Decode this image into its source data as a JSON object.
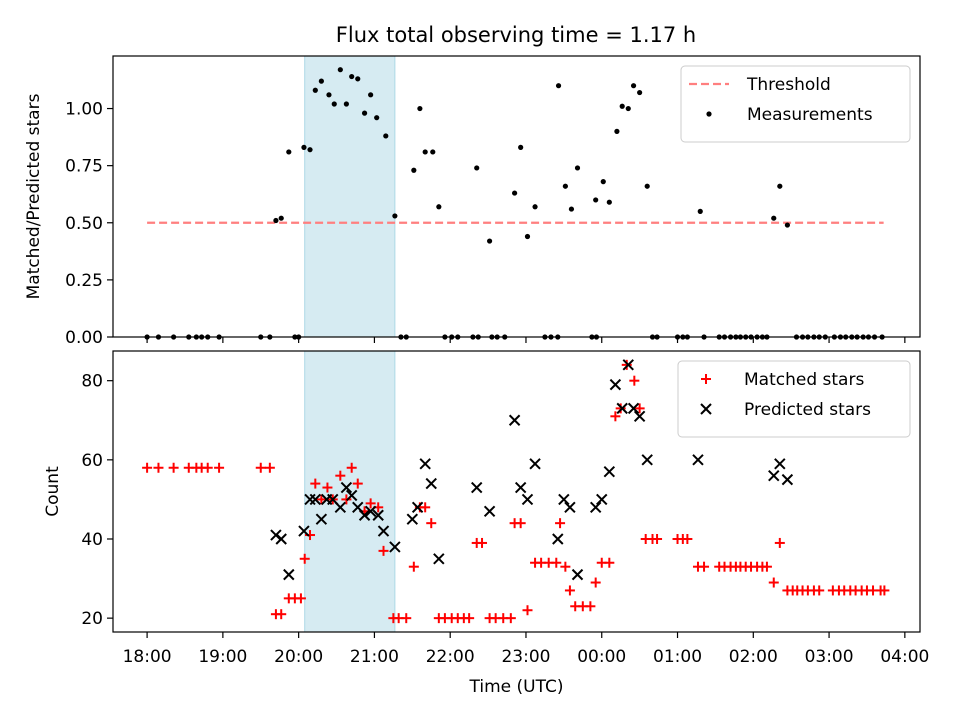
{
  "title": "Flux total observing time = 1.17 h",
  "colors": {
    "threshold": "#ff7f7f",
    "measurement": "#000000",
    "matched": "#ff0000",
    "predicted": "#000000",
    "shade": "#add8e6"
  },
  "chart_data": [
    {
      "type": "scatter",
      "title": "Flux total observing time = 1.17 h",
      "ylabel": "Matched/Predicted stars",
      "xlabel": "",
      "x_unit": "hours (UTC, continuing past midnight as 24+)",
      "xlim": [
        17.55,
        28.2
      ],
      "ylim": [
        0,
        1.23
      ],
      "yticks": [
        0.0,
        0.25,
        0.5,
        0.75,
        1.0
      ],
      "ytick_labels": [
        "0.00",
        "0.25",
        "0.50",
        "0.75",
        "1.00"
      ],
      "shaded_interval": [
        "20:05",
        "21:16"
      ],
      "shaded_x": [
        20.08,
        21.27
      ],
      "legend_position": "top-right",
      "threshold": {
        "name": "Threshold",
        "y": 0.5,
        "x_range": [
          18.0,
          27.72
        ]
      },
      "series": [
        {
          "name": "Measurements",
          "points": [
            [
              18.0,
              0
            ],
            [
              18.15,
              0
            ],
            [
              18.35,
              0
            ],
            [
              18.55,
              0
            ],
            [
              18.65,
              0
            ],
            [
              18.72,
              0
            ],
            [
              18.8,
              0
            ],
            [
              18.95,
              0
            ],
            [
              19.5,
              0
            ],
            [
              19.62,
              0
            ],
            [
              19.95,
              0
            ],
            [
              20.0,
              0
            ],
            [
              19.7,
              0.51
            ],
            [
              19.77,
              0.52
            ],
            [
              19.87,
              0.81
            ],
            [
              20.07,
              0.83
            ],
            [
              20.15,
              0.82
            ],
            [
              20.22,
              1.08
            ],
            [
              20.3,
              1.12
            ],
            [
              20.4,
              1.06
            ],
            [
              20.47,
              1.02
            ],
            [
              20.55,
              1.17
            ],
            [
              20.63,
              1.02
            ],
            [
              20.7,
              1.14
            ],
            [
              20.78,
              1.13
            ],
            [
              20.87,
              0.98
            ],
            [
              20.95,
              1.06
            ],
            [
              21.03,
              0.96
            ],
            [
              21.15,
              0.88
            ],
            [
              21.27,
              0.53
            ],
            [
              21.35,
              0
            ],
            [
              21.42,
              0
            ],
            [
              21.52,
              0.73
            ],
            [
              21.6,
              1.0
            ],
            [
              21.67,
              0.81
            ],
            [
              21.77,
              0.81
            ],
            [
              21.85,
              0.57
            ],
            [
              21.93,
              0
            ],
            [
              22.02,
              0
            ],
            [
              22.1,
              0
            ],
            [
              22.3,
              0
            ],
            [
              22.37,
              0
            ],
            [
              22.55,
              0
            ],
            [
              22.62,
              0
            ],
            [
              22.72,
              0
            ],
            [
              22.35,
              0.74
            ],
            [
              22.52,
              0.42
            ],
            [
              22.85,
              0.63
            ],
            [
              22.93,
              0.83
            ],
            [
              23.02,
              0.44
            ],
            [
              23.12,
              0.57
            ],
            [
              23.25,
              0
            ],
            [
              23.33,
              0
            ],
            [
              23.42,
              0
            ],
            [
              23.43,
              1.1
            ],
            [
              23.52,
              0.66
            ],
            [
              23.6,
              0.56
            ],
            [
              23.68,
              0.74
            ],
            [
              23.87,
              0
            ],
            [
              23.93,
              0
            ],
            [
              23.92,
              0.6
            ],
            [
              24.02,
              0.68
            ],
            [
              24.1,
              0.59
            ],
            [
              24.2,
              0.9
            ],
            [
              24.27,
              1.01
            ],
            [
              24.35,
              1.0
            ],
            [
              24.42,
              1.1
            ],
            [
              24.5,
              1.07
            ],
            [
              24.6,
              0.66
            ],
            [
              24.67,
              0
            ],
            [
              24.73,
              0
            ],
            [
              25.0,
              0
            ],
            [
              25.07,
              0
            ],
            [
              25.13,
              0
            ],
            [
              25.3,
              0.55
            ],
            [
              25.35,
              0
            ],
            [
              25.55,
              0
            ],
            [
              25.62,
              0
            ],
            [
              25.7,
              0
            ],
            [
              25.77,
              0
            ],
            [
              25.83,
              0
            ],
            [
              25.9,
              0
            ],
            [
              25.97,
              0
            ],
            [
              26.05,
              0
            ],
            [
              26.12,
              0
            ],
            [
              26.18,
              0
            ],
            [
              26.27,
              0.52
            ],
            [
              26.35,
              0.66
            ],
            [
              26.45,
              0.49
            ],
            [
              26.57,
              0
            ],
            [
              26.65,
              0
            ],
            [
              26.72,
              0
            ],
            [
              26.8,
              0
            ],
            [
              26.87,
              0
            ],
            [
              26.95,
              0
            ],
            [
              27.07,
              0
            ],
            [
              27.15,
              0
            ],
            [
              27.22,
              0
            ],
            [
              27.3,
              0
            ],
            [
              27.37,
              0
            ],
            [
              27.45,
              0
            ],
            [
              27.52,
              0
            ],
            [
              27.6,
              0
            ],
            [
              27.7,
              0
            ]
          ]
        }
      ]
    },
    {
      "type": "scatter",
      "title": "",
      "ylabel": "Count",
      "xlabel": "Time (UTC)",
      "x_unit": "hours (UTC, continuing past midnight as 24+)",
      "xlim": [
        17.55,
        28.2
      ],
      "ylim": [
        16.5,
        87.5
      ],
      "yticks": [
        20,
        40,
        60,
        80
      ],
      "xticks": [
        18,
        19,
        20,
        21,
        22,
        23,
        24,
        25,
        26,
        27,
        28
      ],
      "xtick_labels": [
        "18:00",
        "19:00",
        "20:00",
        "21:00",
        "22:00",
        "23:00",
        "00:00",
        "01:00",
        "02:00",
        "03:00",
        "04:00"
      ],
      "shaded_interval": [
        "20:05",
        "21:16"
      ],
      "shaded_x": [
        20.08,
        21.27
      ],
      "legend_position": "top-right",
      "series": [
        {
          "name": "Matched stars",
          "marker": "plus",
          "points": [
            [
              18.0,
              58
            ],
            [
              18.15,
              58
            ],
            [
              18.35,
              58
            ],
            [
              18.55,
              58
            ],
            [
              18.65,
              58
            ],
            [
              18.72,
              58
            ],
            [
              18.8,
              58
            ],
            [
              18.95,
              58
            ],
            [
              19.5,
              58
            ],
            [
              19.62,
              58
            ],
            [
              19.7,
              21
            ],
            [
              19.77,
              21
            ],
            [
              19.87,
              25
            ],
            [
              19.95,
              25
            ],
            [
              20.03,
              25
            ],
            [
              20.08,
              35
            ],
            [
              20.15,
              41
            ],
            [
              20.22,
              54
            ],
            [
              20.3,
              50
            ],
            [
              20.38,
              53
            ],
            [
              20.45,
              50
            ],
            [
              20.55,
              56
            ],
            [
              20.63,
              50
            ],
            [
              20.7,
              58
            ],
            [
              20.78,
              54
            ],
            [
              20.87,
              47
            ],
            [
              20.95,
              49
            ],
            [
              21.05,
              48
            ],
            [
              21.12,
              37
            ],
            [
              21.25,
              20
            ],
            [
              21.32,
              20
            ],
            [
              21.42,
              20
            ],
            [
              21.52,
              33
            ],
            [
              21.6,
              48
            ],
            [
              21.67,
              48
            ],
            [
              21.75,
              44
            ],
            [
              21.85,
              20
            ],
            [
              21.93,
              20
            ],
            [
              22.02,
              20
            ],
            [
              22.1,
              20
            ],
            [
              22.18,
              20
            ],
            [
              22.25,
              20
            ],
            [
              22.35,
              39
            ],
            [
              22.42,
              39
            ],
            [
              22.52,
              20
            ],
            [
              22.6,
              20
            ],
            [
              22.7,
              20
            ],
            [
              22.8,
              20
            ],
            [
              22.85,
              44
            ],
            [
              22.93,
              44
            ],
            [
              23.02,
              22
            ],
            [
              23.12,
              34
            ],
            [
              23.2,
              34
            ],
            [
              23.3,
              34
            ],
            [
              23.4,
              34
            ],
            [
              23.45,
              44
            ],
            [
              23.52,
              33
            ],
            [
              23.58,
              27
            ],
            [
              23.65,
              23
            ],
            [
              23.75,
              23
            ],
            [
              23.85,
              23
            ],
            [
              23.92,
              29
            ],
            [
              24.0,
              34
            ],
            [
              24.1,
              34
            ],
            [
              24.18,
              71
            ],
            [
              24.25,
              73
            ],
            [
              24.33,
              84
            ],
            [
              24.43,
              80
            ],
            [
              24.5,
              73
            ],
            [
              24.58,
              40
            ],
            [
              24.67,
              40
            ],
            [
              24.73,
              40
            ],
            [
              25.0,
              40
            ],
            [
              25.07,
              40
            ],
            [
              25.13,
              40
            ],
            [
              25.27,
              33
            ],
            [
              25.35,
              33
            ],
            [
              25.55,
              33
            ],
            [
              25.62,
              33
            ],
            [
              25.7,
              33
            ],
            [
              25.77,
              33
            ],
            [
              25.83,
              33
            ],
            [
              25.9,
              33
            ],
            [
              25.97,
              33
            ],
            [
              26.05,
              33
            ],
            [
              26.12,
              33
            ],
            [
              26.18,
              33
            ],
            [
              26.27,
              29
            ],
            [
              26.35,
              39
            ],
            [
              26.45,
              27
            ],
            [
              26.52,
              27
            ],
            [
              26.58,
              27
            ],
            [
              26.65,
              27
            ],
            [
              26.72,
              27
            ],
            [
              26.8,
              27
            ],
            [
              26.87,
              27
            ],
            [
              27.05,
              27
            ],
            [
              27.13,
              27
            ],
            [
              27.2,
              27
            ],
            [
              27.28,
              27
            ],
            [
              27.35,
              27
            ],
            [
              27.43,
              27
            ],
            [
              27.5,
              27
            ],
            [
              27.58,
              27
            ],
            [
              27.68,
              27
            ],
            [
              27.73,
              27
            ]
          ]
        },
        {
          "name": "Predicted stars",
          "marker": "x",
          "points": [
            [
              19.7,
              41
            ],
            [
              19.77,
              40
            ],
            [
              19.87,
              31
            ],
            [
              20.07,
              42
            ],
            [
              20.15,
              50
            ],
            [
              20.22,
              50
            ],
            [
              20.3,
              45
            ],
            [
              20.37,
              50
            ],
            [
              20.45,
              50
            ],
            [
              20.55,
              48
            ],
            [
              20.63,
              53
            ],
            [
              20.7,
              51
            ],
            [
              20.78,
              48
            ],
            [
              20.87,
              46
            ],
            [
              20.95,
              47
            ],
            [
              21.05,
              46
            ],
            [
              21.12,
              42
            ],
            [
              21.27,
              38
            ],
            [
              21.5,
              45
            ],
            [
              21.57,
              48
            ],
            [
              21.67,
              59
            ],
            [
              21.75,
              54
            ],
            [
              21.85,
              35
            ],
            [
              22.35,
              53
            ],
            [
              22.52,
              47
            ],
            [
              22.85,
              70
            ],
            [
              22.93,
              53
            ],
            [
              23.02,
              50
            ],
            [
              23.12,
              59
            ],
            [
              23.42,
              40
            ],
            [
              23.5,
              50
            ],
            [
              23.58,
              48
            ],
            [
              23.68,
              31
            ],
            [
              23.92,
              48
            ],
            [
              24.0,
              50
            ],
            [
              24.1,
              57
            ],
            [
              24.18,
              79
            ],
            [
              24.27,
              73
            ],
            [
              24.35,
              84
            ],
            [
              24.42,
              73
            ],
            [
              24.5,
              71
            ],
            [
              24.6,
              60
            ],
            [
              25.27,
              60
            ],
            [
              26.27,
              56
            ],
            [
              26.35,
              59
            ],
            [
              26.45,
              55
            ]
          ]
        }
      ]
    }
  ]
}
